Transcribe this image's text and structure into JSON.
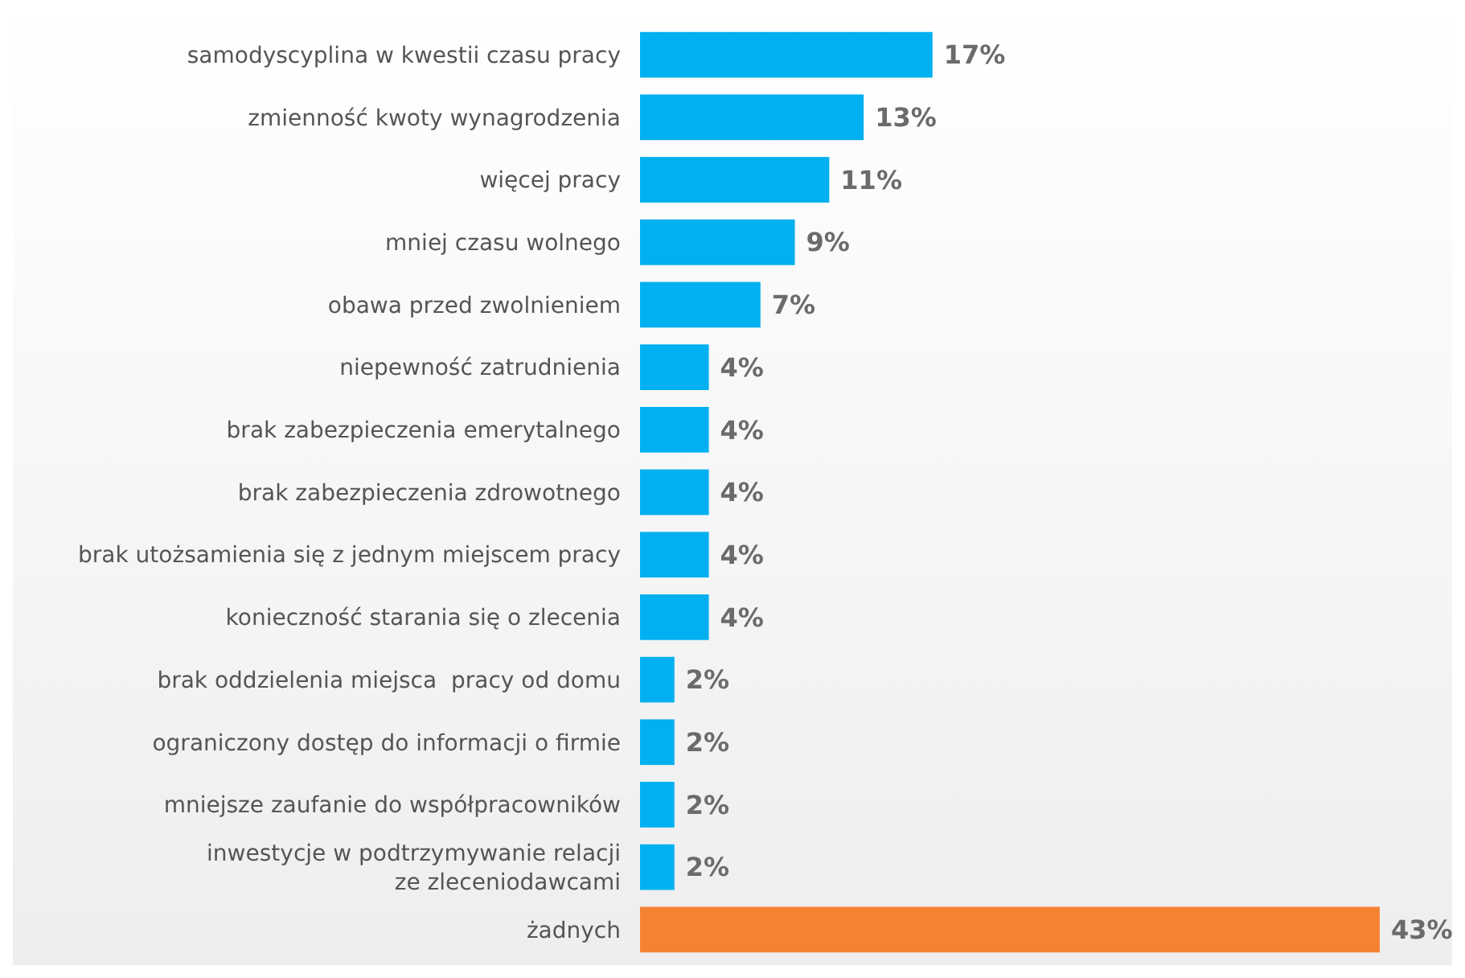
{
  "chart_data": {
    "type": "bar",
    "orientation": "horizontal",
    "categories": [
      "samodyscyplina w kwestii czasu pracy",
      "zmienność kwoty wynagrodzenia",
      "więcej pracy",
      "mniej czasu wolnego",
      "obawa przed zwolnieniem",
      "niepewność zatrudnienia",
      "brak zabezpieczenia emerytalnego",
      "brak zabezpieczenia zdrowotnego",
      "brak utożsamienia się z jednym miejscem pracy",
      "konieczność starania się o zlecenia",
      "brak oddzielenia miejsca  pracy od domu",
      "ograniczony dostęp do informacji o firmie",
      "mniejsze zaufanie do współpracowników",
      "inwestycje w podtrzymywanie relacji\nze zleceniodawcami",
      "żadnych"
    ],
    "values": [
      17,
      13,
      11,
      9,
      7,
      4,
      4,
      4,
      4,
      4,
      2,
      2,
      2,
      2,
      43
    ],
    "colors": [
      "#00b0f0",
      "#00b0f0",
      "#00b0f0",
      "#00b0f0",
      "#00b0f0",
      "#00b0f0",
      "#00b0f0",
      "#00b0f0",
      "#00b0f0",
      "#00b0f0",
      "#00b0f0",
      "#00b0f0",
      "#00b0f0",
      "#00b0f0",
      "#f58233"
    ],
    "value_labels": [
      "17%",
      "13%",
      "11%",
      "9%",
      "7%",
      "4%",
      "4%",
      "4%",
      "4%",
      "4%",
      "2%",
      "2%",
      "2%",
      "2%",
      "43%"
    ],
    "tick_labels": "y"
  }
}
